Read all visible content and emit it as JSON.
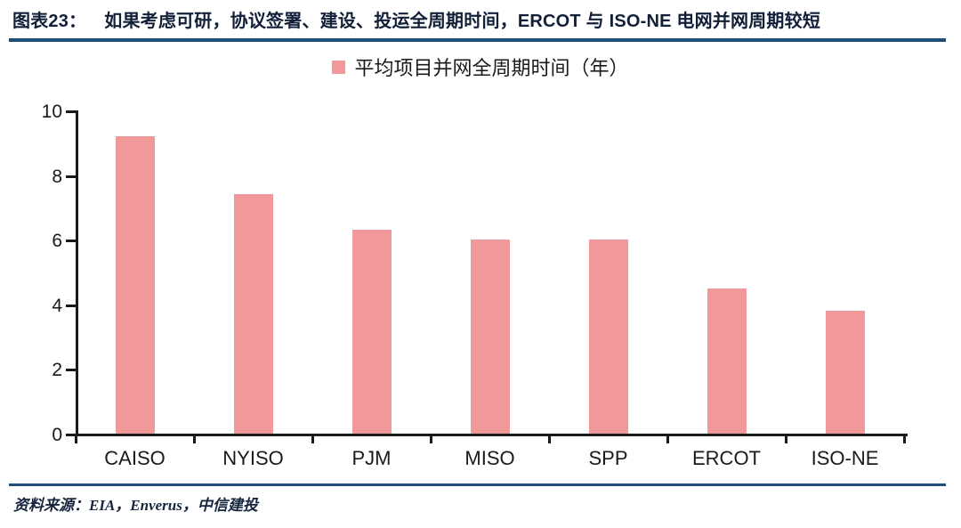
{
  "header": {
    "figure_label": "图表23：",
    "title": "如果考虑可研，协议签署、建设、投运全周期时间，ERCOT 与 ISO-NE 电网并网周期较短"
  },
  "legend": {
    "label": "平均项目并网全周期时间（年）"
  },
  "chart_data": {
    "type": "bar",
    "categories": [
      "CAISO",
      "NYISO",
      "PJM",
      "MISO",
      "SPP",
      "ERCOT",
      "ISO-NE"
    ],
    "values": [
      9.2,
      7.4,
      6.3,
      6.0,
      6.0,
      4.5,
      3.8
    ],
    "series_name": "平均项目并网全周期时间（年）",
    "title": "",
    "xlabel": "",
    "ylabel": "",
    "ylim": [
      0,
      10
    ],
    "ytick_step": 2,
    "grid": false,
    "legend_position": "top-center",
    "bar_color": "#F0989A"
  },
  "footer": {
    "source": "资料来源：EIA，Enverus，中信建投"
  },
  "colors": {
    "bar": "#F0989A",
    "rule_blue": "#1F4E79",
    "axis": "#1a1a1a",
    "title_text": "#121f38"
  }
}
